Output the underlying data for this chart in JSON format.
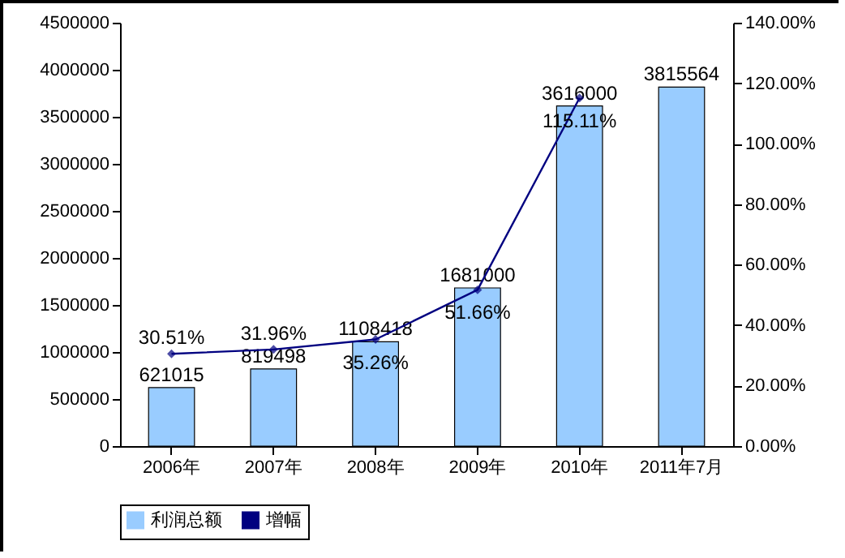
{
  "chart_data": {
    "type": "bar",
    "categories": [
      "2006年",
      "2007年",
      "2008年",
      "2009年",
      "2010年",
      "2011年7月"
    ],
    "series": [
      {
        "name": "利润总额",
        "color": "#99ccff",
        "values": [
          621015,
          819498,
          1108418,
          1681000,
          3616000,
          3815564
        ],
        "value_labels": [
          "621015",
          "819498",
          "1108418",
          "1681000",
          "3616000",
          "3815564"
        ]
      },
      {
        "name": "增幅",
        "type": "line",
        "axis": "y2",
        "color": "#000080",
        "values": [
          30.51,
          31.96,
          35.26,
          51.66,
          115.11,
          null
        ],
        "value_labels": [
          "30.51%",
          "31.96%",
          "35.26%",
          "51.66%",
          "115.11%",
          null
        ]
      }
    ],
    "ylim": [
      0,
      4500000
    ],
    "yticks": [
      0,
      500000,
      1000000,
      1500000,
      2000000,
      2500000,
      3000000,
      3500000,
      4000000,
      4500000
    ],
    "y2lim": [
      0,
      140
    ],
    "y2ticks": [
      {
        "value": 0,
        "label": "0.00%"
      },
      {
        "value": 20,
        "label": "20.00%"
      },
      {
        "value": 40,
        "label": "40.00%"
      },
      {
        "value": 60,
        "label": "60.00%"
      },
      {
        "value": 80,
        "label": "80.00%"
      },
      {
        "value": 100,
        "label": "100.00%"
      },
      {
        "value": 120,
        "label": "120.00%"
      },
      {
        "value": 140,
        "label": "140.00%"
      }
    ],
    "grid": false,
    "legend": "bottom",
    "marker": "diamond",
    "line_style": "solid"
  }
}
